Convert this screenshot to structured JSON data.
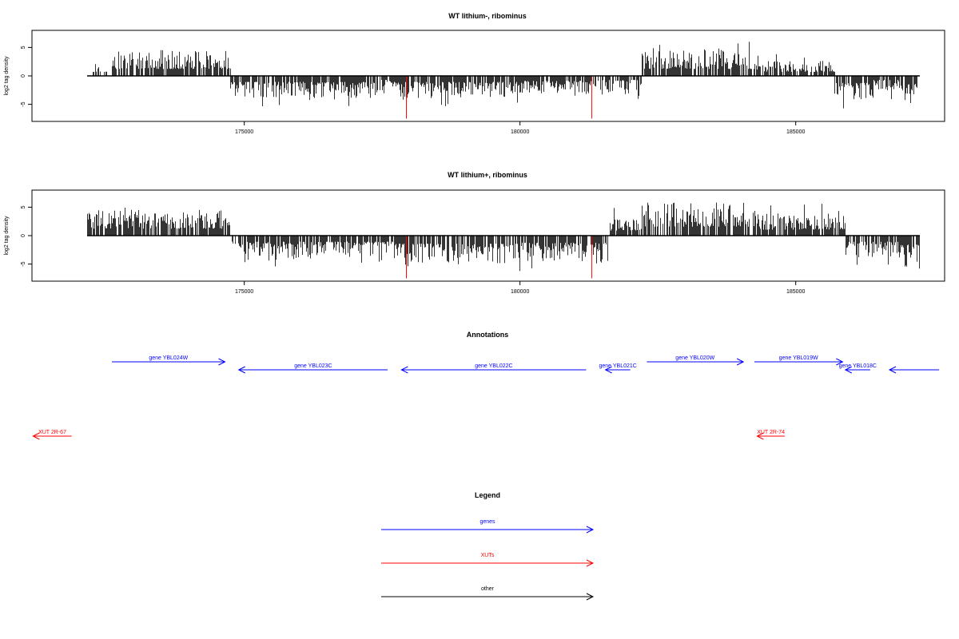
{
  "chart_data": [
    {
      "type": "bar",
      "title": "WT lithium-, ribominus",
      "ylabel": "log2 tag density",
      "xlabel": "",
      "xlim": [
        171150,
        187700
      ],
      "ylim": [
        -8,
        8
      ],
      "x_ticks": [
        175000,
        180000,
        185000
      ],
      "x_tick_labels": [
        "175000",
        "180000",
        "185000"
      ],
      "y_ticks": [
        -5,
        0,
        5
      ],
      "y_tick_labels": [
        "-5",
        "0",
        "5"
      ],
      "baseline_x": [
        172150,
        187250
      ],
      "grid": false,
      "bar_color": "#000000",
      "highlight_color": "#ff0000",
      "density_profile": [
        {
          "x": [
            172250,
            172500
          ],
          "value": 2,
          "strand": "+"
        },
        {
          "x": [
            172600,
            174750
          ],
          "value": 3.5,
          "strand": "+"
        },
        {
          "x": [
            174750,
            177400
          ],
          "value": -3,
          "strand": "-"
        },
        {
          "x": [
            177400,
            177700
          ],
          "value": -2,
          "strand": "-"
        },
        {
          "x": [
            177700,
            180000
          ],
          "value": -3,
          "strand": "-"
        },
        {
          "x": [
            180000,
            181300
          ],
          "value": -2.5,
          "strand": "-"
        },
        {
          "x": [
            181300,
            182200
          ],
          "value": -2,
          "strand": "-"
        },
        {
          "x": [
            182200,
            184250
          ],
          "value": 3.5,
          "strand": "+"
        },
        {
          "x": [
            184250,
            185700
          ],
          "value": 2,
          "strand": "+"
        },
        {
          "x": [
            185700,
            186400
          ],
          "value": -3.5,
          "strand": "-"
        },
        {
          "x": [
            186400,
            186900
          ],
          "value": -2,
          "strand": "-"
        },
        {
          "x": [
            186900,
            187200
          ],
          "value": -4,
          "strand": "-"
        }
      ],
      "highlights": [
        {
          "x": 177940,
          "value": -7.5
        },
        {
          "x": 181300,
          "value": -7.5
        }
      ]
    },
    {
      "type": "bar",
      "title": "WT lithium+, ribominus",
      "ylabel": "log2 tag density",
      "xlabel": "",
      "xlim": [
        171150,
        187700
      ],
      "ylim": [
        -8,
        8
      ],
      "x_ticks": [
        175000,
        180000,
        185000
      ],
      "x_tick_labels": [
        "175000",
        "180000",
        "185000"
      ],
      "y_ticks": [
        -5,
        0,
        5
      ],
      "y_tick_labels": [
        "-5",
        "0",
        "5"
      ],
      "baseline_x": [
        172150,
        187250
      ],
      "grid": false,
      "bar_color": "#000000",
      "highlight_color": "#ff0000",
      "density_profile": [
        {
          "x": [
            172150,
            174750
          ],
          "value": 3.5,
          "strand": "+"
        },
        {
          "x": [
            174750,
            177700
          ],
          "value": -3,
          "strand": "-"
        },
        {
          "x": [
            177700,
            180000
          ],
          "value": -4,
          "strand": "-"
        },
        {
          "x": [
            180000,
            181600
          ],
          "value": -3.5,
          "strand": "-"
        },
        {
          "x": [
            181600,
            182200
          ],
          "value": 2.5,
          "strand": "+"
        },
        {
          "x": [
            182200,
            184250
          ],
          "value": 4.5,
          "strand": "+"
        },
        {
          "x": [
            184250,
            185900
          ],
          "value": 3,
          "strand": "+"
        },
        {
          "x": [
            185900,
            186900
          ],
          "value": -3,
          "strand": "-"
        },
        {
          "x": [
            186900,
            187250
          ],
          "value": -4.5,
          "strand": "-"
        }
      ],
      "highlights": [
        {
          "x": 177940,
          "value": -7.5
        },
        {
          "x": 181300,
          "value": -7.5
        }
      ]
    }
  ],
  "annotations": {
    "title": "Annotations",
    "genes_color": "#0000ff",
    "xuts_color": "#ff0000",
    "features": [
      {
        "label": "gene YBL024W",
        "kind": "gene",
        "start": 172600,
        "end": 174650,
        "strand": "+",
        "row": 0
      },
      {
        "label": "gene YBL023C",
        "kind": "gene",
        "start": 174900,
        "end": 177600,
        "strand": "-",
        "row": 1
      },
      {
        "label": "gene YBL022C",
        "kind": "gene",
        "start": 177850,
        "end": 181200,
        "strand": "-",
        "row": 1
      },
      {
        "label": "gene YBL021C",
        "kind": "gene",
        "start": 181550,
        "end": 182000,
        "strand": "-",
        "row": 1
      },
      {
        "label": "gene YBL020W",
        "kind": "gene",
        "start": 182300,
        "end": 184050,
        "strand": "+",
        "row": 0
      },
      {
        "label": "gene YBL019W",
        "kind": "gene",
        "start": 184250,
        "end": 185850,
        "strand": "+",
        "row": 0
      },
      {
        "label": "gene YBL018C",
        "kind": "gene",
        "start": 185900,
        "end": 186350,
        "strand": "-",
        "row": 1
      },
      {
        "label": "",
        "kind": "gene",
        "start": 186700,
        "end": 187600,
        "strand": "-",
        "row": 1
      },
      {
        "label": "XUT 2R-67",
        "kind": "xut",
        "start": 171170,
        "end": 171870,
        "strand": "-",
        "row": 2
      },
      {
        "label": "XUT 2R-74",
        "kind": "xut",
        "start": 184300,
        "end": 184800,
        "strand": "-",
        "row": 2
      }
    ]
  },
  "legend": {
    "title": "Legend",
    "items": [
      {
        "label": "genes",
        "color": "#0000ff"
      },
      {
        "label": "XUTs",
        "color": "#ff0000"
      },
      {
        "label": "other",
        "color": "#000000"
      }
    ]
  }
}
